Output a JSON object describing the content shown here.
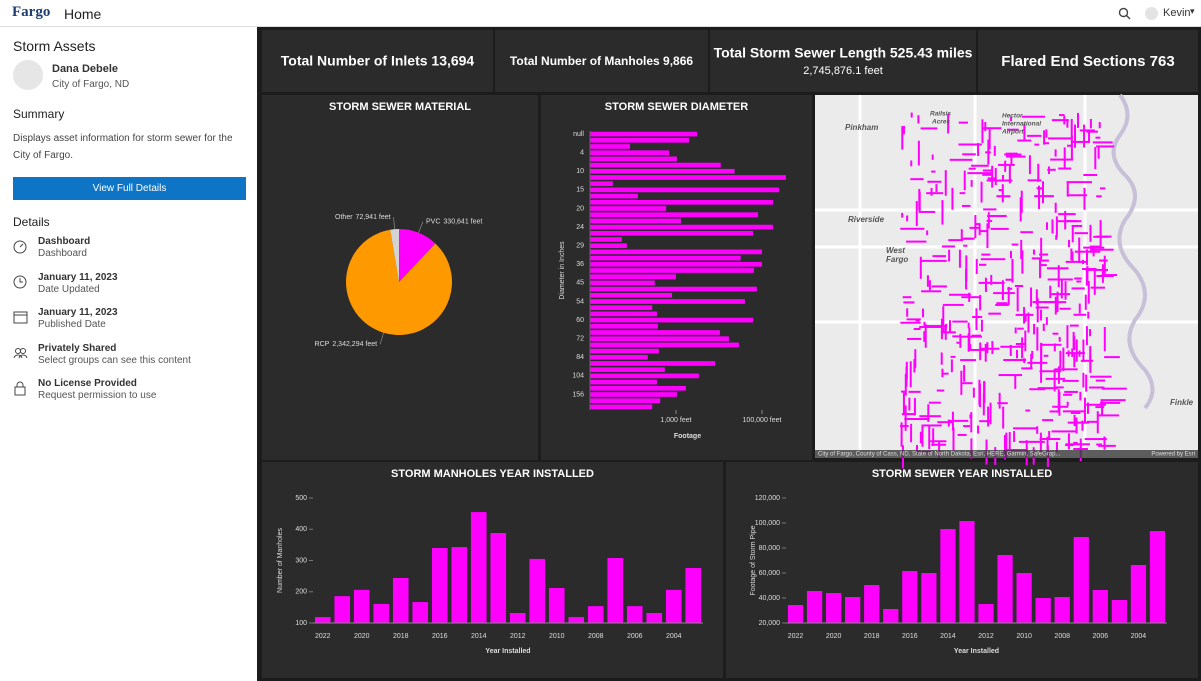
{
  "header": {
    "logo": "Fargo",
    "title": "Home",
    "user": "Kevin"
  },
  "sidebar": {
    "title": "Storm Assets",
    "owner": "Dana Debele",
    "org": "City of Fargo, ND",
    "summary_heading": "Summary",
    "summary": "Displays asset information for storm sewer for the City of Fargo.",
    "button": "View Full Details",
    "details_heading": "Details",
    "details": [
      {
        "title": "Dashboard",
        "subtitle": "Dashboard"
      },
      {
        "title": "January 11, 2023",
        "subtitle": "Date Updated"
      },
      {
        "title": "January 11, 2023",
        "subtitle": "Published Date"
      },
      {
        "title": "Privately Shared",
        "subtitle": "Select groups can see this content"
      },
      {
        "title": "No License Provided",
        "subtitle": "Request permission to use"
      }
    ]
  },
  "indicators": [
    {
      "label": "Total Number of Inlets 13,694"
    },
    {
      "label": "Total Number of Manholes 9,866"
    },
    {
      "label": "Total Storm Sewer Length 525.43 miles",
      "sub": "2,745,876.1 feet"
    },
    {
      "label": "Flared End Sections 763"
    }
  ],
  "charts": [
    {
      "type": "pie",
      "title": "STORM SEWER MATERIAL",
      "categories": [
        "PVC",
        "RCP",
        "Other"
      ],
      "values": [
        330641,
        2342294,
        72941
      ],
      "value_labels": [
        "330,641 feet",
        "2,342,294 feet",
        "72,941 feet"
      ],
      "colors": [
        "#ff00ff",
        "#ff9900",
        "#d3d3d3"
      ]
    },
    {
      "type": "hbar",
      "title": "STORM SEWER DIAMETER",
      "x_label": "Footage",
      "y_label": "Diameter in Inches",
      "log_x": true,
      "color": "#ff00ff",
      "categories": [
        "null",
        null,
        null,
        "4",
        null,
        null,
        "10",
        null,
        null,
        "15",
        null,
        null,
        "20",
        null,
        null,
        "24",
        null,
        null,
        "29",
        null,
        null,
        "36",
        null,
        null,
        "45",
        null,
        null,
        "54",
        null,
        null,
        "60",
        null,
        null,
        "72",
        null,
        null,
        "84",
        null,
        null,
        "104",
        null,
        null,
        "156",
        null,
        null
      ],
      "values": [
        3100,
        2000,
        85,
        690,
        1050,
        11000,
        23000,
        360000,
        34,
        250000,
        130,
        180000,
        590,
        81000,
        1300,
        180000,
        62000,
        55,
        72,
        100000,
        32000,
        100000,
        65000,
        1000,
        320,
        76000,
        810,
        40000,
        280,
        360,
        62000,
        380,
        10500,
        17000,
        29000,
        400,
        220,
        8100,
        550,
        3400,
        360,
        1700,
        1050,
        430,
        280
      ],
      "xlim": [
        10,
        1000000
      ],
      "xticks": [
        {
          "value": 1000,
          "label": "1,000 feet"
        },
        {
          "value": 100000,
          "label": "100,000 feet"
        }
      ]
    },
    {
      "type": "bar",
      "title": "STORM MANHOLES YEAR INSTALLED",
      "x_label": "Year Installed",
      "y_label": "Number of Manholes",
      "color": "#ff00ff",
      "categories": [
        "2022",
        null,
        "2020",
        null,
        "2018",
        null,
        "2016",
        null,
        "2014",
        null,
        "2012",
        null,
        "2010",
        null,
        "2008",
        null,
        "2006",
        null,
        "2004",
        null
      ],
      "values": [
        119,
        186,
        206,
        161,
        244,
        167,
        340,
        343,
        455,
        388,
        132,
        305,
        212,
        119,
        154,
        308,
        154,
        132,
        206,
        276
      ],
      "ylim": [
        100,
        500
      ],
      "yticks": [
        100,
        200,
        300,
        400,
        500
      ]
    },
    {
      "type": "bar",
      "title": "STORM SEWER YEAR INSTALLED",
      "x_label": "Year Installed",
      "y_label": "Footage of Storm Pipe",
      "color": "#ff00ff",
      "categories": [
        "2022",
        null,
        "2020",
        null,
        "2018",
        null,
        "2016",
        null,
        "2014",
        null,
        "2012",
        null,
        "2010",
        null,
        "2008",
        null,
        "2006",
        null,
        "2004",
        null
      ],
      "values": [
        34400,
        45600,
        44000,
        40800,
        50400,
        31200,
        61600,
        60000,
        95200,
        101600,
        35200,
        74400,
        60000,
        40000,
        40800,
        88800,
        46400,
        38400,
        66400,
        93600
      ],
      "ylim": [
        20000,
        120000
      ],
      "yticks": [
        {
          "value": 20000,
          "label": "20,000"
        },
        {
          "value": 40000,
          "label": "40,000"
        },
        {
          "value": 60000,
          "label": "60,000"
        },
        {
          "value": 80000,
          "label": "80,000"
        },
        {
          "value": 100000,
          "label": "100,000"
        },
        {
          "value": 120000,
          "label": "120,000"
        }
      ]
    }
  ],
  "map": {
    "labels": [
      "Pinkham",
      "Railsis",
      "Acres",
      "Hector",
      "International",
      "Airport",
      "Riverside",
      "West",
      "Fargo",
      "Finkle"
    ],
    "attribution": "City of Fargo, County of Cass, ND, State of North Dakota, Esri, HERE, Garmin, SafeGrap...",
    "powered": "Powered by Esri"
  }
}
